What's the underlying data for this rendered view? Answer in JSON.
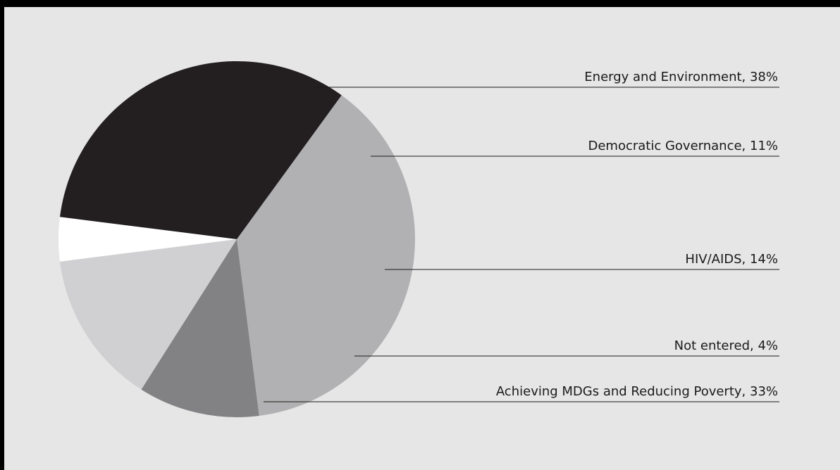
{
  "chart_data": {
    "type": "pie",
    "title": "",
    "start_angle_deg": -54,
    "direction": "clockwise",
    "slices": [
      {
        "label": "Energy and Environment, 38%",
        "name": "Energy and Environment",
        "value": 38,
        "color": "#b1b1b3"
      },
      {
        "label": "Democratic Governance, 11%",
        "name": "Democratic Governance",
        "value": 11,
        "color": "#828285"
      },
      {
        "label": "HIV/AIDS, 14%",
        "name": "HIV/AIDS",
        "value": 14,
        "color": "#d0d0d2"
      },
      {
        "label": "Not entered, 4%",
        "name": "Not entered",
        "value": 4,
        "color": "#ffffff"
      },
      {
        "label": "Achieving MDGs and Reducing Poverty, 33%",
        "name": "Achieving MDGs and Reducing Poverty",
        "value": 33,
        "color": "#231f20"
      }
    ],
    "legend": "leader-line labels on the right"
  }
}
